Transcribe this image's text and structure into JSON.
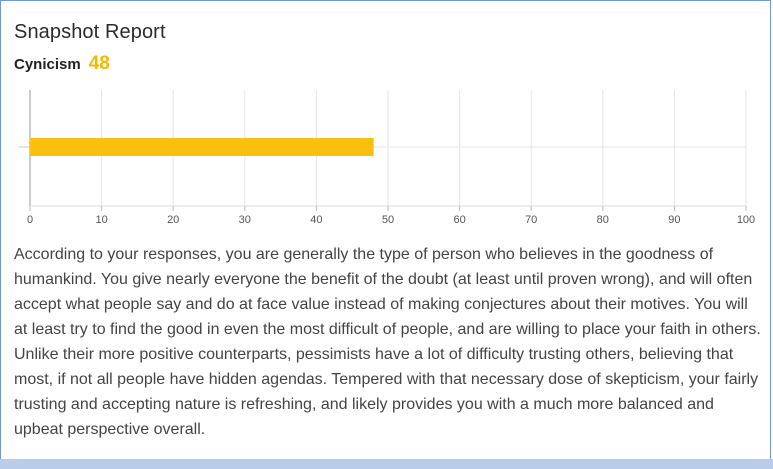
{
  "report": {
    "title": "Snapshot Report",
    "metric_label": "Cynicism",
    "metric_value": "48",
    "description": "According to your responses, you are generally the type of person who believes in the goodness of humankind. You give nearly everyone the benefit of the doubt (at least until proven wrong), and will often accept what people say and do at face value instead of making conjectures about their motives. You will at least try to find the good in even the most difficult of people, and are willing to place your faith in others. Unlike their more positive counterparts, pessimists have a lot of difficulty trusting others, believing that most, if not all people have hidden agendas. Tempered with that necessary dose of skepticism, your fairly trusting and accepting nature is refreshing, and likely provides you with a much more balanced and upbeat perspective overall."
  },
  "colors": {
    "bar": "#fbbf0e",
    "accent": "#f5b800",
    "border": "#6f9ad6",
    "bottom_strip": "#b9ccea"
  },
  "chart_data": {
    "type": "bar",
    "orientation": "horizontal",
    "categories": [
      "Cynicism"
    ],
    "values": [
      48
    ],
    "xlim": [
      0,
      100
    ],
    "ticks": [
      "0",
      "10",
      "20",
      "30",
      "40",
      "50",
      "60",
      "70",
      "80",
      "90",
      "100"
    ],
    "grid": true
  }
}
